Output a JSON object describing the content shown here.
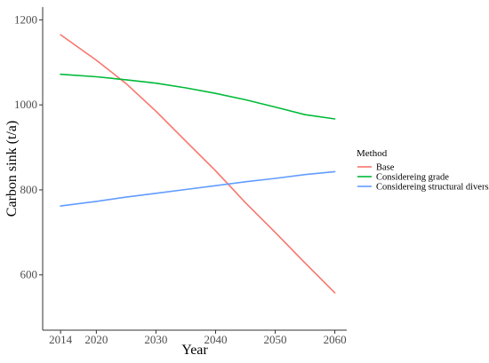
{
  "chart_data": {
    "type": "line",
    "title": "",
    "xlabel": "Year",
    "ylabel": "Carbon sink (t/a)",
    "xlim": [
      2011,
      2062
    ],
    "ylim": [
      470,
      1230
    ],
    "x_ticks": [
      2014,
      2020,
      2030,
      2040,
      2050,
      2060
    ],
    "y_ticks": [
      600,
      800,
      1000,
      1200
    ],
    "grid": false,
    "legend": {
      "title": "Method",
      "placement": "right"
    },
    "series": [
      {
        "name": "Base",
        "color": "#F8766D",
        "x": [
          2014,
          2020,
          2025,
          2030,
          2035,
          2040,
          2045,
          2050,
          2055,
          2060
        ],
        "y": [
          1165,
          1105,
          1050,
          985,
          915,
          845,
          770,
          700,
          628,
          558
        ]
      },
      {
        "name": "Considereing grade",
        "color": "#00BA38",
        "x": [
          2014,
          2020,
          2025,
          2030,
          2035,
          2040,
          2045,
          2050,
          2055,
          2060
        ],
        "y": [
          1072,
          1066,
          1059,
          1051,
          1040,
          1027,
          1012,
          995,
          977,
          967
        ]
      },
      {
        "name": "Considereing structural diversity",
        "color": "#619CFF",
        "x": [
          2014,
          2020,
          2025,
          2030,
          2035,
          2040,
          2045,
          2050,
          2055,
          2060
        ],
        "y": [
          762,
          773,
          783,
          792,
          801,
          810,
          819,
          827,
          836,
          843
        ]
      }
    ]
  }
}
